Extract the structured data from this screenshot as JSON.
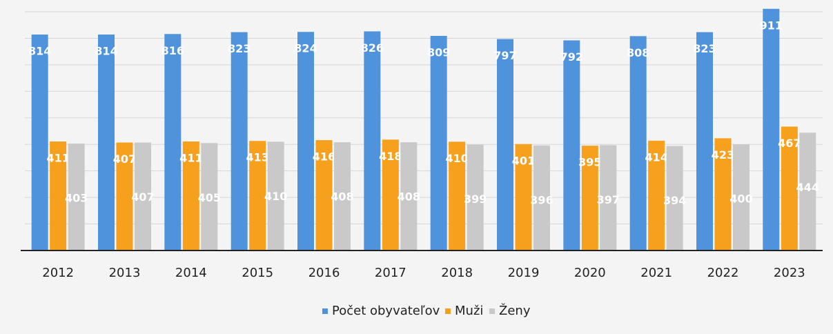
{
  "chart_data": {
    "type": "bar",
    "categories": [
      "2012",
      "2013",
      "2014",
      "2015",
      "2016",
      "2017",
      "2018",
      "2019",
      "2020",
      "2021",
      "2022",
      "2023"
    ],
    "series": [
      {
        "name": "Počet obyvateľov",
        "color": "#4f93dc",
        "values": [
          814,
          814,
          816,
          823,
          824,
          826,
          809,
          797,
          792,
          808,
          823,
          911
        ]
      },
      {
        "name": "Muži",
        "color": "#f7a01e",
        "values": [
          411,
          407,
          411,
          413,
          416,
          418,
          410,
          401,
          395,
          414,
          423,
          467
        ]
      },
      {
        "name": "Ženy",
        "color": "#c9c9c9",
        "values": [
          403,
          407,
          405,
          410,
          408,
          408,
          399,
          396,
          397,
          394,
          400,
          444
        ]
      }
    ],
    "ylim": [
      0,
      900
    ],
    "yticks": [
      0,
      100,
      200,
      300,
      400,
      500,
      600,
      700,
      800,
      900
    ],
    "grid": true,
    "legend": "bottom"
  }
}
